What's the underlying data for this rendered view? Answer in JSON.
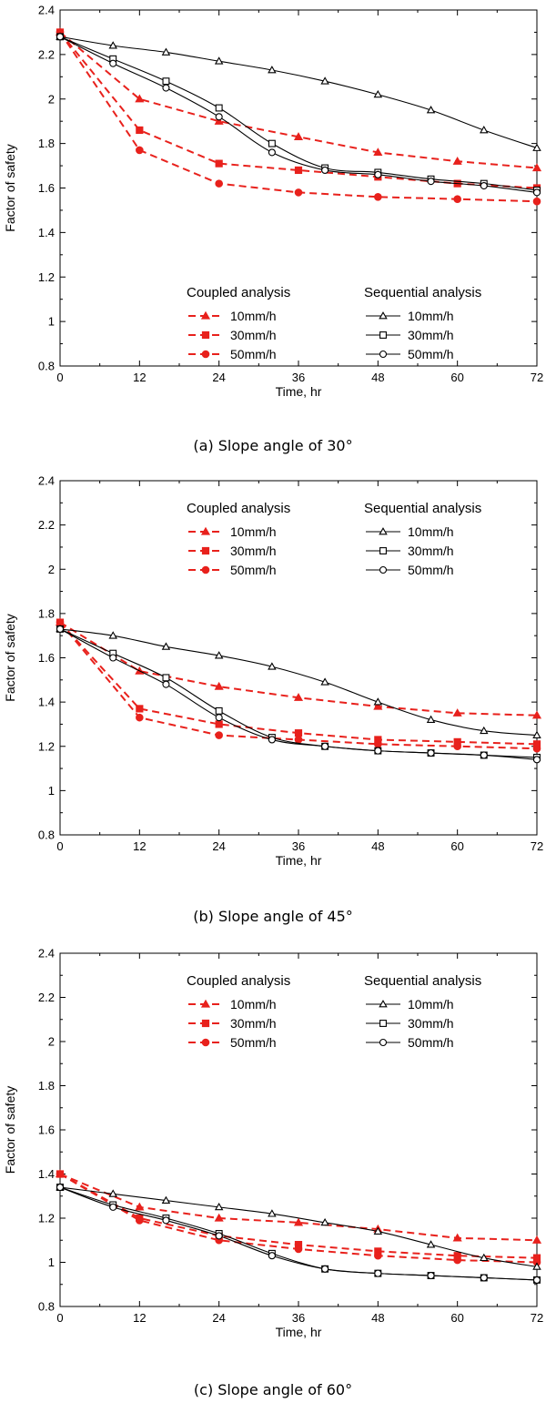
{
  "chart_data": [
    {
      "type": "line",
      "caption": "(a) Slope angle of 30°",
      "xlabel": "Time, hr",
      "ylabel": "Factor of safety",
      "xlim": [
        0,
        72
      ],
      "ylim": [
        0.8,
        2.4
      ],
      "xticks": [
        0,
        12,
        24,
        36,
        48,
        60,
        72
      ],
      "yticks": [
        0.8,
        1,
        1.2,
        1.4,
        1.6,
        1.8,
        2,
        2.2,
        2.4
      ],
      "legend_placement": "bottom-center",
      "legend_groups": [
        "Coupled analysis",
        "Sequential analysis"
      ],
      "series": [
        {
          "name": "10mm/h",
          "group": "Coupled analysis",
          "color": "#e8211c",
          "dash": true,
          "marker": "filled-triangle",
          "x": [
            0,
            12,
            24,
            36,
            48,
            60,
            72
          ],
          "y": [
            2.3,
            2.0,
            1.9,
            1.83,
            1.76,
            1.72,
            1.69
          ]
        },
        {
          "name": "30mm/h",
          "group": "Coupled analysis",
          "color": "#e8211c",
          "dash": true,
          "marker": "filled-square",
          "x": [
            0,
            12,
            24,
            36,
            48,
            60,
            72
          ],
          "y": [
            2.3,
            1.86,
            1.71,
            1.68,
            1.65,
            1.62,
            1.6
          ]
        },
        {
          "name": "50mm/h",
          "group": "Coupled analysis",
          "color": "#e8211c",
          "dash": true,
          "marker": "filled-circle",
          "x": [
            0,
            12,
            24,
            36,
            48,
            60,
            72
          ],
          "y": [
            2.3,
            1.77,
            1.62,
            1.58,
            1.56,
            1.55,
            1.54
          ]
        },
        {
          "name": "10mm/h",
          "group": "Sequential analysis",
          "color": "#000000",
          "dash": false,
          "marker": "open-triangle",
          "x": [
            0,
            8,
            16,
            24,
            32,
            40,
            48,
            56,
            64,
            72
          ],
          "y": [
            2.28,
            2.24,
            2.21,
            2.17,
            2.13,
            2.08,
            2.02,
            1.95,
            1.86,
            1.78
          ]
        },
        {
          "name": "30mm/h",
          "group": "Sequential analysis",
          "color": "#000000",
          "dash": false,
          "marker": "open-square",
          "x": [
            0,
            8,
            16,
            24,
            32,
            40,
            48,
            56,
            64,
            72
          ],
          "y": [
            2.28,
            2.18,
            2.08,
            1.96,
            1.8,
            1.69,
            1.67,
            1.64,
            1.62,
            1.59
          ]
        },
        {
          "name": "50mm/h",
          "group": "Sequential analysis",
          "color": "#000000",
          "dash": false,
          "marker": "open-circle",
          "x": [
            0,
            8,
            16,
            24,
            32,
            40,
            48,
            56,
            64,
            72
          ],
          "y": [
            2.28,
            2.16,
            2.05,
            1.92,
            1.76,
            1.68,
            1.66,
            1.63,
            1.61,
            1.58
          ]
        }
      ]
    },
    {
      "type": "line",
      "caption": "(b) Slope angle of 45°",
      "xlabel": "Time, hr",
      "ylabel": "Factor of safety",
      "xlim": [
        0,
        72
      ],
      "ylim": [
        0.8,
        2.4
      ],
      "xticks": [
        0,
        12,
        24,
        36,
        48,
        60,
        72
      ],
      "yticks": [
        0.8,
        1,
        1.2,
        1.4,
        1.6,
        1.8,
        2,
        2.2,
        2.4
      ],
      "legend_placement": "top-center",
      "legend_groups": [
        "Coupled analysis",
        "Sequential analysis"
      ],
      "series": [
        {
          "name": "10mm/h",
          "group": "Coupled analysis",
          "color": "#e8211c",
          "dash": true,
          "marker": "filled-triangle",
          "x": [
            0,
            12,
            24,
            36,
            48,
            60,
            72
          ],
          "y": [
            1.76,
            1.54,
            1.47,
            1.42,
            1.38,
            1.35,
            1.34
          ]
        },
        {
          "name": "30mm/h",
          "group": "Coupled analysis",
          "color": "#e8211c",
          "dash": true,
          "marker": "filled-square",
          "x": [
            0,
            12,
            24,
            36,
            48,
            60,
            72
          ],
          "y": [
            1.76,
            1.37,
            1.3,
            1.26,
            1.23,
            1.22,
            1.21
          ]
        },
        {
          "name": "50mm/h",
          "group": "Coupled analysis",
          "color": "#e8211c",
          "dash": true,
          "marker": "filled-circle",
          "x": [
            0,
            12,
            24,
            36,
            48,
            60,
            72
          ],
          "y": [
            1.76,
            1.33,
            1.25,
            1.23,
            1.21,
            1.2,
            1.19
          ]
        },
        {
          "name": "10mm/h",
          "group": "Sequential analysis",
          "color": "#000000",
          "dash": false,
          "marker": "open-triangle",
          "x": [
            0,
            8,
            16,
            24,
            32,
            40,
            48,
            56,
            64,
            72
          ],
          "y": [
            1.73,
            1.7,
            1.65,
            1.61,
            1.56,
            1.49,
            1.4,
            1.32,
            1.27,
            1.25
          ]
        },
        {
          "name": "30mm/h",
          "group": "Sequential analysis",
          "color": "#000000",
          "dash": false,
          "marker": "open-square",
          "x": [
            0,
            8,
            16,
            24,
            32,
            40,
            48,
            56,
            64,
            72
          ],
          "y": [
            1.73,
            1.62,
            1.51,
            1.36,
            1.24,
            1.2,
            1.18,
            1.17,
            1.16,
            1.15
          ]
        },
        {
          "name": "50mm/h",
          "group": "Sequential analysis",
          "color": "#000000",
          "dash": false,
          "marker": "open-circle",
          "x": [
            0,
            8,
            16,
            24,
            32,
            40,
            48,
            56,
            64,
            72
          ],
          "y": [
            1.73,
            1.6,
            1.48,
            1.33,
            1.23,
            1.2,
            1.18,
            1.17,
            1.16,
            1.14
          ]
        }
      ]
    },
    {
      "type": "line",
      "caption": "(c) Slope angle of 60°",
      "xlabel": "Time, hr",
      "ylabel": "Factor of safety",
      "xlim": [
        0,
        72
      ],
      "ylim": [
        0.8,
        2.4
      ],
      "xticks": [
        0,
        12,
        24,
        36,
        48,
        60,
        72
      ],
      "yticks": [
        0.8,
        1,
        1.2,
        1.4,
        1.6,
        1.8,
        2,
        2.2,
        2.4
      ],
      "legend_placement": "top-center",
      "legend_groups": [
        "Coupled analysis",
        "Sequential analysis"
      ],
      "series": [
        {
          "name": "10mm/h",
          "group": "Coupled analysis",
          "color": "#e8211c",
          "dash": true,
          "marker": "filled-triangle",
          "x": [
            0,
            12,
            24,
            36,
            48,
            60,
            72
          ],
          "y": [
            1.4,
            1.25,
            1.2,
            1.18,
            1.15,
            1.11,
            1.1
          ]
        },
        {
          "name": "30mm/h",
          "group": "Coupled analysis",
          "color": "#e8211c",
          "dash": true,
          "marker": "filled-square",
          "x": [
            0,
            12,
            24,
            36,
            48,
            60,
            72
          ],
          "y": [
            1.4,
            1.2,
            1.12,
            1.08,
            1.05,
            1.03,
            1.02
          ]
        },
        {
          "name": "50mm/h",
          "group": "Coupled analysis",
          "color": "#e8211c",
          "dash": true,
          "marker": "filled-circle",
          "x": [
            0,
            12,
            24,
            36,
            48,
            60,
            72
          ],
          "y": [
            1.4,
            1.19,
            1.1,
            1.06,
            1.03,
            1.01,
            1.0
          ]
        },
        {
          "name": "10mm/h",
          "group": "Sequential analysis",
          "color": "#000000",
          "dash": false,
          "marker": "open-triangle",
          "x": [
            0,
            8,
            16,
            24,
            32,
            40,
            48,
            56,
            64,
            72
          ],
          "y": [
            1.34,
            1.31,
            1.28,
            1.25,
            1.22,
            1.18,
            1.14,
            1.08,
            1.02,
            0.98
          ]
        },
        {
          "name": "30mm/h",
          "group": "Sequential analysis",
          "color": "#000000",
          "dash": false,
          "marker": "open-square",
          "x": [
            0,
            8,
            16,
            24,
            32,
            40,
            48,
            56,
            64,
            72
          ],
          "y": [
            1.34,
            1.26,
            1.2,
            1.13,
            1.04,
            0.97,
            0.95,
            0.94,
            0.93,
            0.92
          ]
        },
        {
          "name": "50mm/h",
          "group": "Sequential analysis",
          "color": "#000000",
          "dash": false,
          "marker": "open-circle",
          "x": [
            0,
            8,
            16,
            24,
            32,
            40,
            48,
            56,
            64,
            72
          ],
          "y": [
            1.34,
            1.25,
            1.19,
            1.12,
            1.03,
            0.97,
            0.95,
            0.94,
            0.93,
            0.92
          ]
        }
      ]
    }
  ]
}
